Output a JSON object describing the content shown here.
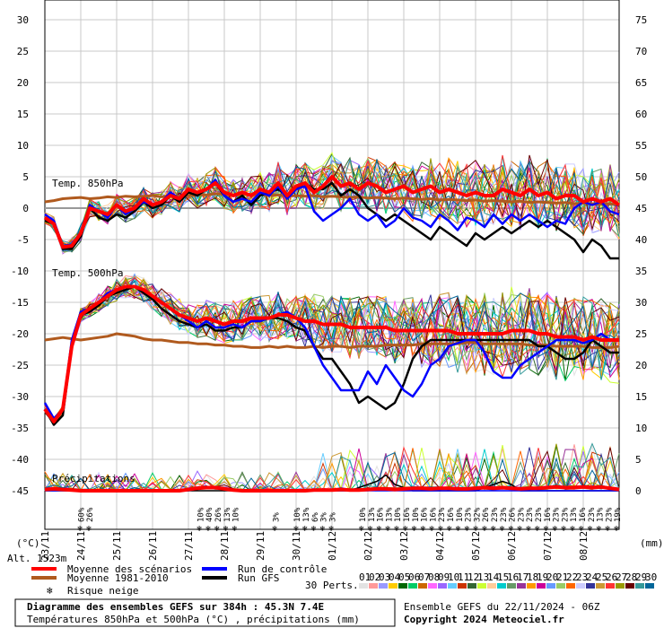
{
  "chart_data": {
    "type": "line",
    "plot_x_range_days": [
      0,
      16
    ],
    "left_axis": {
      "unit": "(°C)",
      "ticks": [
        "30",
        "25",
        "20",
        "15",
        "10",
        "5",
        "0",
        "-5",
        "-10",
        "-15",
        "-20",
        "-25",
        "-30",
        "-35",
        "-40",
        "-45"
      ],
      "values": [
        30,
        25,
        20,
        15,
        10,
        5,
        0,
        -5,
        -10,
        -15,
        -20,
        -25,
        -30,
        -35,
        -40,
        -45
      ]
    },
    "right_axis": {
      "unit": "(mm)",
      "ticks": [
        "75",
        "70",
        "65",
        "60",
        "55",
        "50",
        "45",
        "40",
        "35",
        "30",
        "25",
        "20",
        "15",
        "10",
        "5",
        "0"
      ],
      "values": [
        75,
        70,
        65,
        60,
        55,
        50,
        45,
        40,
        35,
        30,
        25,
        20,
        15,
        10,
        5,
        0
      ]
    },
    "x_ticks": [
      "23/11",
      "24/11",
      "25/11",
      "26/11",
      "27/11",
      "28/11",
      "29/11",
      "30/11",
      "01/12",
      "02/12",
      "03/12",
      "04/12",
      "05/12",
      "06/12",
      "07/12",
      "08/12"
    ],
    "panel_labels": {
      "t850": "Temp. 850hPa",
      "t500": "Temp. 500hPa",
      "precip": "Précipitations"
    },
    "altitude_label": "Alt. 1523m",
    "snow_risk": [
      {
        "day": 0.8,
        "pct": "60%"
      },
      {
        "day": 1.15,
        "pct": "26%"
      },
      {
        "day": 5.55,
        "pct": "10%"
      },
      {
        "day": 5.9,
        "pct": "40%"
      },
      {
        "day": 6.25,
        "pct": "26%"
      },
      {
        "day": 6.6,
        "pct": "13%"
      },
      {
        "day": 6.95,
        "pct": "10%"
      },
      {
        "day": 8.55,
        "pct": "3%"
      },
      {
        "day": 9.4,
        "pct": "10%"
      },
      {
        "day": 9.75,
        "pct": "13%"
      },
      {
        "day": 10.1,
        "pct": "6%"
      },
      {
        "day": 10.45,
        "pct": "3%"
      },
      {
        "day": 10.8,
        "pct": "3%"
      },
      {
        "day": 12.0,
        "pct": "10%"
      },
      {
        "day": 12.35,
        "pct": "13%"
      },
      {
        "day": 12.7,
        "pct": "16%"
      },
      {
        "day": 13.05,
        "pct": "13%"
      },
      {
        "day": 13.4,
        "pct": "10%"
      },
      {
        "day": 13.75,
        "pct": "16%"
      },
      {
        "day": 14.1,
        "pct": "10%"
      },
      {
        "day": 14.45,
        "pct": "16%"
      },
      {
        "day": 14.8,
        "pct": "16%"
      },
      {
        "day": 15.15,
        "pct": "23%"
      },
      {
        "day": 15.5,
        "pct": "16%"
      },
      {
        "day": 15.85,
        "pct": "10%"
      },
      {
        "day": 16.2,
        "pct": "23%"
      },
      {
        "day": 16.55,
        "pct": "32%"
      },
      {
        "day": 16.9,
        "pct": "26%"
      },
      {
        "day": 17.25,
        "pct": "23%"
      },
      {
        "day": 17.6,
        "pct": "23%"
      },
      {
        "day": 17.95,
        "pct": "26%"
      },
      {
        "day": 18.3,
        "pct": "23%"
      },
      {
        "day": 18.65,
        "pct": "23%"
      },
      {
        "day": 19.0,
        "pct": "23%"
      },
      {
        "day": 19.35,
        "pct": "16%"
      },
      {
        "day": 19.7,
        "pct": "23%"
      },
      {
        "day": 20.05,
        "pct": "23%"
      },
      {
        "day": 20.4,
        "pct": "13%"
      },
      {
        "day": 20.75,
        "pct": "16%"
      },
      {
        "day": 21.1,
        "pct": "23%"
      },
      {
        "day": 21.45,
        "pct": "13%"
      },
      {
        "day": 21.8,
        "pct": "23%"
      },
      {
        "day": 22.15,
        "pct": "19%"
      }
    ],
    "series_850": {
      "x": [
        0,
        0.25,
        0.5,
        0.75,
        1,
        1.25,
        1.5,
        1.75,
        2,
        2.25,
        2.5,
        2.75,
        3,
        3.25,
        3.5,
        3.75,
        4,
        4.25,
        4.5,
        4.75,
        5,
        5.25,
        5.5,
        5.75,
        6,
        6.25,
        6.5,
        6.75,
        7,
        7.25,
        7.5,
        7.75,
        8,
        8.25,
        8.5,
        8.75,
        9,
        9.25,
        9.5,
        9.75,
        10,
        10.25,
        10.5,
        10.75,
        11,
        11.25,
        11.5,
        11.75,
        12,
        12.25,
        12.5,
        12.75,
        13,
        13.25,
        13.5,
        13.75,
        14,
        14.25,
        14.5,
        14.75,
        15,
        15.25,
        15.5,
        15.75,
        16
      ],
      "mean": [
        -1.5,
        -2.5,
        -6.2,
        -6,
        -4,
        0,
        -0.5,
        -1,
        0.5,
        -0.5,
        0,
        1.5,
        0.5,
        1,
        2,
        1.5,
        3,
        2.5,
        3,
        4,
        2.5,
        2,
        2.5,
        2,
        3,
        2.5,
        4,
        2,
        3.5,
        4,
        2.5,
        3.5,
        5,
        3.5,
        4,
        3,
        4,
        3.5,
        2.5,
        3,
        3.5,
        2.5,
        3,
        3.5,
        2.5,
        3,
        2.5,
        2,
        2.5,
        2,
        2,
        3,
        2.5,
        2,
        3,
        2,
        2.5,
        1.5,
        2,
        2,
        1,
        1.5,
        1,
        1.5,
        0.5
      ],
      "climatology": [
        1,
        1.2,
        1.5,
        1.6,
        1.7,
        1.5,
        1.6,
        1.8,
        1.7,
        1.9,
        1.8,
        1.9,
        2,
        1.8,
        2,
        1.9,
        2,
        2.2,
        2.1,
        2.3,
        2.2,
        2.1,
        2.3,
        2.1,
        2.2,
        2,
        2.1,
        1.9,
        2,
        1.9,
        2,
        1.8,
        1.9,
        1.8,
        1.7,
        1.8,
        1.6,
        1.7,
        1.6,
        1.5,
        1.6,
        1.5,
        1.4,
        1.5,
        1.3,
        1.4,
        1.3,
        1.2,
        1.3,
        1.1,
        1.2,
        1.1,
        1,
        1.1,
        0.9,
        1,
        0.9,
        0.8,
        0.9,
        0.7,
        0.8,
        0.7,
        0.6,
        0.7,
        0.6
      ],
      "control": [
        -1,
        -2,
        -6,
        -5.8,
        -4,
        0.5,
        -0.5,
        -1.5,
        0.5,
        -1,
        0,
        1,
        0.5,
        1,
        2.5,
        1.5,
        3,
        2.5,
        3,
        4.5,
        2,
        1,
        1.5,
        1,
        2.5,
        2,
        3.5,
        1.5,
        3,
        3.5,
        -0.5,
        -2,
        -1,
        0,
        1.5,
        -1,
        -2,
        -1,
        -3,
        -2,
        0,
        -1.5,
        -2,
        -3,
        -1,
        -2,
        -3.5,
        -1.5,
        -2,
        -3,
        -1,
        -2.5,
        -1,
        -2,
        -1,
        -2,
        -3,
        -2,
        -2.5,
        0,
        1,
        0.5,
        1,
        -0.5,
        -1
      ],
      "gfs": [
        -2,
        -2.5,
        -6.5,
        -6.5,
        -4.5,
        0,
        -1.5,
        -2,
        -1,
        -1.5,
        -0.5,
        1,
        0,
        0.5,
        2,
        1,
        2.5,
        2,
        3,
        4,
        2,
        1,
        2,
        0.5,
        2,
        2.5,
        3,
        2,
        3,
        4,
        3,
        3,
        4,
        2,
        3,
        2,
        0,
        -1,
        -2,
        -1,
        -2,
        -3,
        -4,
        -5,
        -3,
        -4,
        -5,
        -6,
        -4,
        -5,
        -4,
        -3,
        -4,
        -3,
        -2,
        -3,
        -2,
        -3,
        -4,
        -5,
        -7,
        -5,
        -6,
        -8,
        -8
      ]
    },
    "series_500": {
      "x": [
        0,
        0.25,
        0.5,
        0.75,
        1,
        1.25,
        1.5,
        1.75,
        2,
        2.25,
        2.5,
        2.75,
        3,
        3.25,
        3.5,
        3.75,
        4,
        4.25,
        4.5,
        4.75,
        5,
        5.25,
        5.5,
        5.75,
        6,
        6.25,
        6.5,
        6.75,
        7,
        7.25,
        7.5,
        7.75,
        8,
        8.25,
        8.5,
        8.75,
        9,
        9.25,
        9.5,
        9.75,
        10,
        10.25,
        10.5,
        10.75,
        11,
        11.25,
        11.5,
        11.75,
        12,
        12.25,
        12.5,
        12.75,
        13,
        13.25,
        13.5,
        13.75,
        14,
        14.25,
        14.5,
        14.75,
        15,
        15.25,
        15.5,
        15.75,
        16
      ],
      "mean": [
        -32,
        -34,
        -32,
        -22,
        -17,
        -16,
        -15,
        -14,
        -13,
        -12.5,
        -12.5,
        -13,
        -14,
        -15,
        -16,
        -17,
        -17.5,
        -18,
        -17.5,
        -18,
        -18.5,
        -18,
        -18,
        -17.5,
        -17.5,
        -17.5,
        -17,
        -17,
        -17.5,
        -18,
        -18,
        -18.5,
        -18.5,
        -18.5,
        -19,
        -19,
        -19,
        -19,
        -19,
        -19.5,
        -19.5,
        -19.5,
        -19.5,
        -19.5,
        -19.5,
        -19.5,
        -20,
        -20,
        -20,
        -20,
        -20,
        -20,
        -19.5,
        -19.5,
        -19.5,
        -20,
        -20,
        -20.5,
        -20.5,
        -20.5,
        -21,
        -20.5,
        -21,
        -21,
        -21
      ],
      "climatology": [
        -21,
        -20.8,
        -20.6,
        -20.8,
        -21,
        -20.8,
        -20.6,
        -20.4,
        -20,
        -20.2,
        -20.4,
        -20.8,
        -21,
        -21,
        -21.2,
        -21.4,
        -21.4,
        -21.6,
        -21.6,
        -21.8,
        -21.8,
        -22,
        -22,
        -22.2,
        -22.2,
        -22,
        -22.2,
        -22,
        -22.2,
        -22.2,
        -22,
        -22.2,
        -22,
        -22,
        -22.2,
        -22,
        -22,
        -22,
        -21.8,
        -21.8,
        -21.8,
        -21.8,
        -21.6,
        -21.6,
        -21.6,
        -21.6,
        -21.6,
        -21.4,
        -21.4,
        -21.6,
        -21.6,
        -21.6,
        -21.6,
        -21.6,
        -21.8,
        -21.8,
        -21.8,
        -22,
        -22,
        -22,
        -22,
        -22.2,
        -22.2,
        -22.2,
        -22
      ],
      "control": [
        -31,
        -33.5,
        -32,
        -21,
        -16.5,
        -16,
        -15,
        -13.5,
        -13,
        -12.5,
        -12.5,
        -13,
        -14,
        -15,
        -16,
        -17,
        -18,
        -19,
        -18,
        -19,
        -19,
        -18.5,
        -19,
        -18,
        -18,
        -17.5,
        -17,
        -16.5,
        -17.5,
        -19,
        -22,
        -25,
        -27,
        -29,
        -29,
        -29,
        -26,
        -28,
        -25,
        -27,
        -29,
        -30,
        -28,
        -25,
        -24,
        -22,
        -21.5,
        -21,
        -21,
        -23,
        -26,
        -27,
        -27,
        -25,
        -24,
        -23,
        -22,
        -21,
        -21,
        -21,
        -21.5,
        -21,
        -20,
        -21,
        -21
      ],
      "gfs": [
        -32,
        -34.5,
        -33,
        -22,
        -17,
        -16.5,
        -15.5,
        -14,
        -13.5,
        -13,
        -12.5,
        -13.5,
        -14.5,
        -16,
        -17,
        -18,
        -18.5,
        -19,
        -18.5,
        -19.5,
        -19.5,
        -19,
        -19,
        -18,
        -18,
        -17.5,
        -17.5,
        -18,
        -19,
        -19.5,
        -22,
        -24,
        -24,
        -26,
        -28,
        -31,
        -30,
        -31,
        -32,
        -31,
        -28,
        -24,
        -22,
        -21,
        -21,
        -21,
        -21,
        -21,
        -21,
        -21,
        -21,
        -21,
        -21,
        -21,
        -21,
        -22,
        -22,
        -23,
        -24,
        -24,
        -23,
        -21,
        -22,
        -23,
        -23
      ]
    },
    "series_precip_mm": {
      "x": [
        0,
        0.25,
        0.5,
        0.75,
        1,
        1.25,
        1.5,
        1.75,
        2,
        2.25,
        2.5,
        2.75,
        3,
        3.25,
        3.5,
        3.75,
        4,
        4.25,
        4.5,
        4.75,
        5,
        5.25,
        5.5,
        5.75,
        6,
        6.25,
        6.5,
        6.75,
        7,
        7.25,
        7.5,
        7.75,
        8,
        8.25,
        8.5,
        8.75,
        9,
        9.25,
        9.5,
        9.75,
        10,
        10.25,
        10.5,
        10.75,
        11,
        11.25,
        11.5,
        11.75,
        12,
        12.25,
        12.5,
        12.75,
        13,
        13.25,
        13.5,
        13.75,
        14,
        14.25,
        14.5,
        14.75,
        15,
        15.25,
        15.5,
        15.75,
        16
      ],
      "mean": [
        0.2,
        0.3,
        0.2,
        0.1,
        0,
        0,
        0,
        0,
        0,
        0,
        0,
        0,
        0,
        0,
        0,
        0,
        0.2,
        0.4,
        0.5,
        0.5,
        0.3,
        0.1,
        0,
        0,
        0,
        0,
        0,
        0,
        0,
        0,
        0.1,
        0.1,
        0.1,
        0.2,
        0.1,
        0.1,
        0.2,
        0.3,
        0.3,
        0.2,
        0.3,
        0.4,
        0.4,
        0.3,
        0.4,
        0.4,
        0.3,
        0.3,
        0.4,
        0.5,
        0.4,
        0.5,
        0.4,
        0.3,
        0.4,
        0.4,
        0.5,
        0.6,
        0.5,
        0.5,
        0.6,
        0.5,
        0.6,
        0.4,
        0.2
      ],
      "control": [
        0,
        0,
        0,
        0,
        0,
        0,
        0,
        0,
        0,
        0,
        0,
        0,
        0,
        0,
        0,
        0,
        0,
        0.3,
        0.5,
        0.6,
        0.3,
        0,
        0,
        0,
        0,
        0,
        0,
        0,
        0,
        0,
        0,
        0,
        0,
        0,
        0,
        0,
        0,
        0,
        0,
        0,
        0,
        0,
        0,
        0,
        0,
        0,
        0,
        0,
        0,
        0,
        0,
        0,
        0,
        0,
        0,
        0,
        0,
        0,
        0,
        0,
        0,
        0,
        0,
        0,
        0
      ],
      "gfs": [
        0,
        0,
        0,
        0,
        0,
        0,
        0,
        0,
        0,
        0,
        0,
        0,
        0,
        0,
        0,
        0,
        0,
        0,
        0,
        0,
        0,
        0,
        0,
        0,
        0,
        0,
        0,
        0,
        0,
        0,
        0,
        0,
        0,
        0,
        0,
        0.5,
        1,
        1.5,
        2.5,
        1,
        0.5,
        0,
        0,
        0,
        0,
        0,
        0,
        0,
        0,
        0.5,
        1,
        1.5,
        1,
        0,
        0,
        0,
        0,
        0,
        0,
        0,
        0,
        0,
        0,
        0,
        0
      ]
    }
  },
  "legend": {
    "items": [
      {
        "label": "Moyenne des scénarios",
        "color": "#ff0000"
      },
      {
        "label": "Run de contrôle",
        "color": "#0000ff"
      },
      {
        "label": "Moyenne 1981-2010",
        "color": "#b05a1e"
      },
      {
        "label": "Run GFS",
        "color": "#000000"
      }
    ],
    "snow_label": "Risque neige",
    "perts_label": "30 Perts.",
    "pert_numbers": [
      "01",
      "02",
      "03",
      "04",
      "05",
      "06",
      "07",
      "08",
      "09",
      "10",
      "11",
      "12",
      "13",
      "14",
      "15",
      "16",
      "17",
      "18",
      "19",
      "20",
      "21",
      "22",
      "23",
      "24",
      "25",
      "26",
      "27",
      "28",
      "29",
      "30"
    ],
    "pert_colors": [
      "#e2e2e2",
      "#ff9999",
      "#9999ff",
      "#ffcc00",
      "#006600",
      "#00cc66",
      "#cc6600",
      "#ff66ff",
      "#9966ff",
      "#66ccff",
      "#cc3300",
      "#336633",
      "#ccff33",
      "#ffcc99",
      "#00cccc",
      "#669966",
      "#993399",
      "#ff9900",
      "#cc0099",
      "#6699ff",
      "#99cc66",
      "#ff6600",
      "#ccccff",
      "#333399",
      "#cc9933",
      "#ff3333",
      "#999900",
      "#660000",
      "#339999",
      "#006699"
    ]
  },
  "footer": {
    "title": "Diagramme des ensembles GEFS sur 384h : 45.3N 7.4E",
    "subtitle": "Températures 850hPa et 500hPa (°C) , précipitations (mm)",
    "run": "Ensemble GEFS du 22/11/2024 - 06Z",
    "copyright": "Copyright 2024 Meteociel.fr"
  },
  "colors": {
    "mean": "#ff0000",
    "control": "#0000ff",
    "climatology": "#b05a1e",
    "gfs": "#000000",
    "grid": "#c8c8c8",
    "snow": "#87cefa"
  }
}
